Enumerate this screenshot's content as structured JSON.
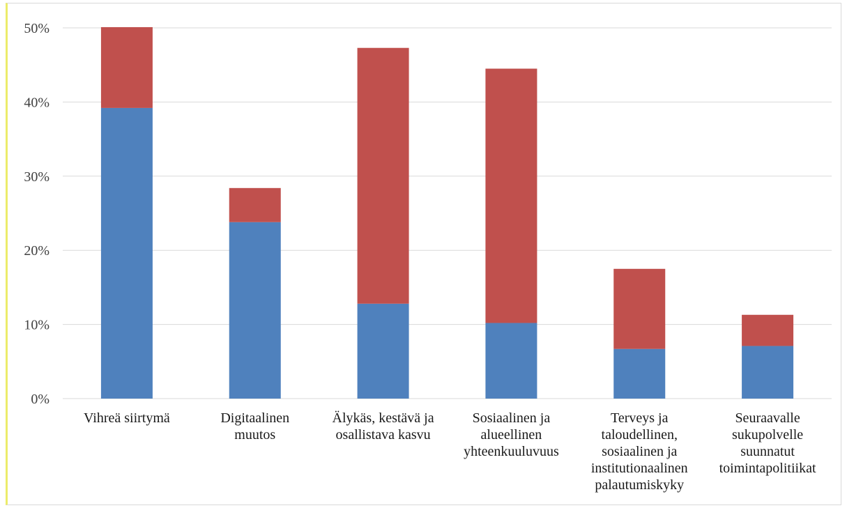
{
  "chart_data": {
    "type": "bar",
    "stacked": true,
    "categories": [
      [
        "Vihreä siirtymä"
      ],
      [
        "Digitaalinen",
        "muutos"
      ],
      [
        "Älykäs, kestävä ja",
        "osallistava kasvu"
      ],
      [
        "Sosiaalinen ja",
        "alueellinen",
        "yhteenkuuluvuus"
      ],
      [
        "Terveys ja",
        "taloudellinen,",
        "sosiaalinen ja",
        "institutionaalinen",
        "palautumiskyky"
      ],
      [
        "Seuraavalle",
        "sukupolvelle",
        "suunnatut",
        "toimintapolitiikat"
      ]
    ],
    "series": [
      {
        "color": "#4f81bd",
        "values": [
          39.2,
          23.8,
          12.8,
          10.2,
          6.7,
          7.1
        ]
      },
      {
        "color": "#c0504d",
        "values": [
          10.9,
          4.6,
          34.5,
          34.3,
          10.8,
          4.2
        ]
      }
    ],
    "ylim": [
      0,
      50
    ],
    "yticks": [
      0,
      10,
      20,
      30,
      40,
      50
    ],
    "ytick_labels": [
      "0%",
      "10%",
      "20%",
      "30%",
      "40%",
      "50%"
    ],
    "grid": true,
    "gridline_color": "#d9d9d9",
    "title": "",
    "xlabel": "",
    "ylabel": ""
  }
}
